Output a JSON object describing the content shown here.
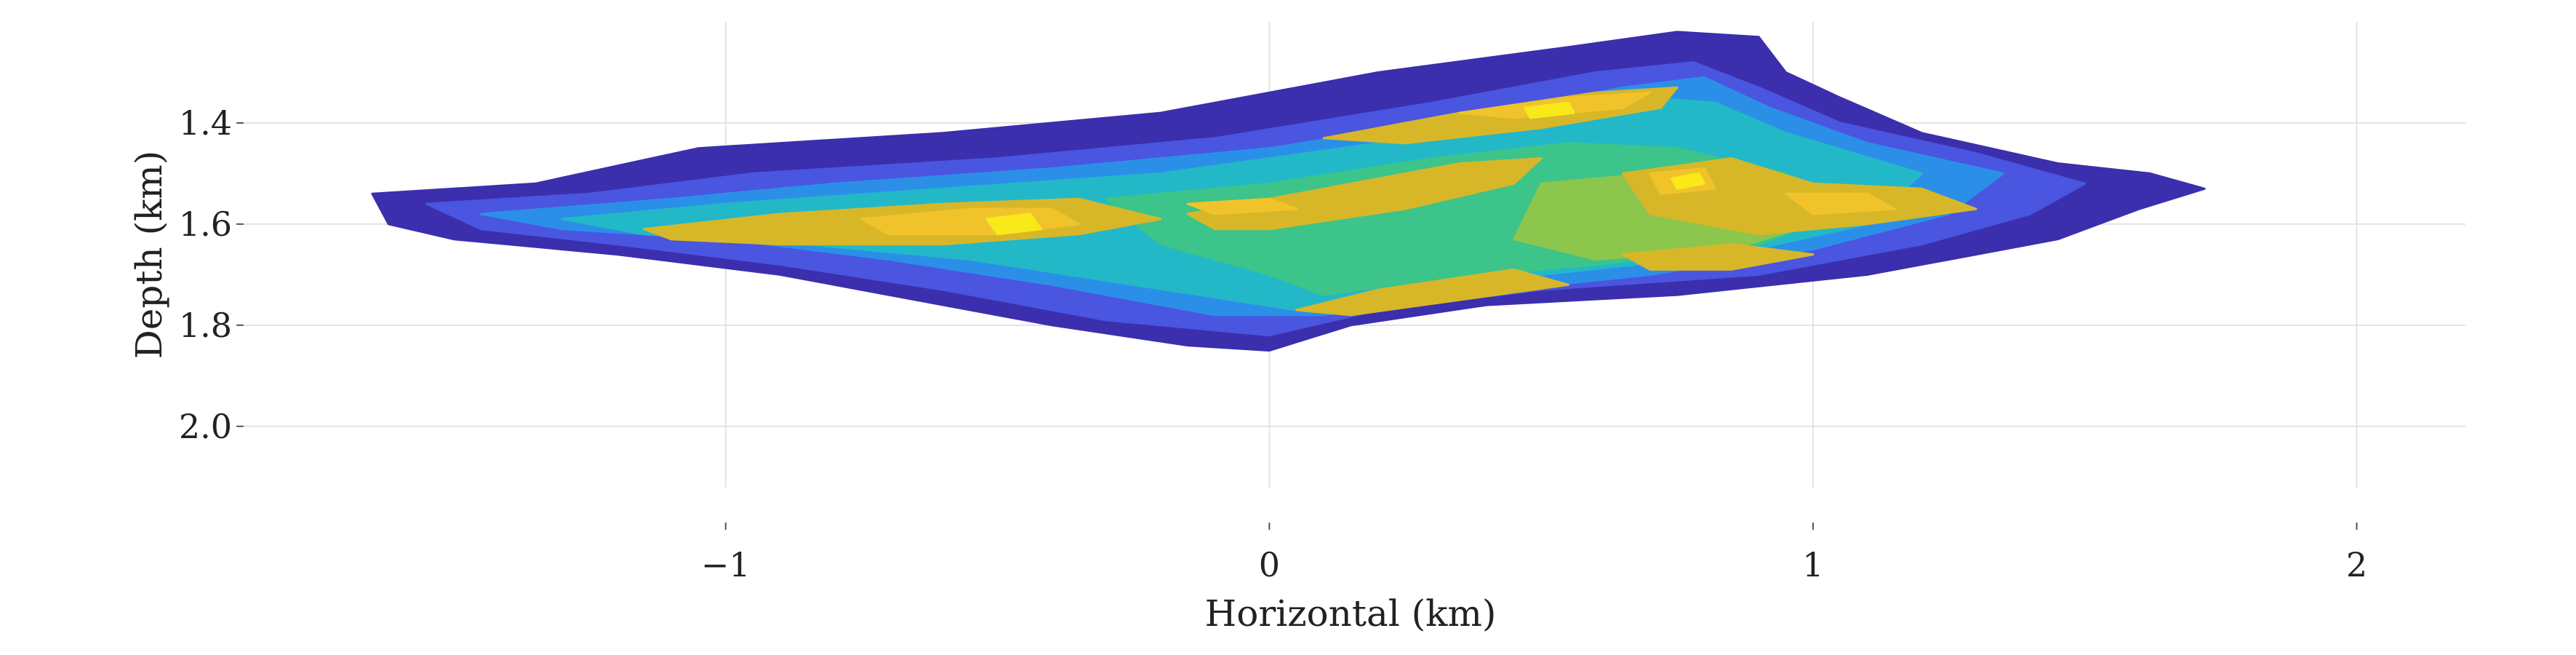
{
  "chart_data": {
    "type": "heatmap",
    "title": "",
    "xlabel": "Horizontal (km)",
    "ylabel": "Depth (km)",
    "xlim": [
      -1.9,
      2.2
    ],
    "ylim": [
      2.15,
      1.2
    ],
    "y_inverted": true,
    "grid": true,
    "x_ticks": [
      -1,
      0,
      1,
      2
    ],
    "x_tick_labels": [
      "−1",
      "0",
      "1",
      "2"
    ],
    "y_ticks": [
      1.4,
      1.6,
      1.8,
      2.0
    ],
    "y_tick_labels": [
      "1.4",
      "1.6",
      "1.8",
      "2.0"
    ],
    "colorscale": [
      "#3b2fad",
      "#4a55e0",
      "#2b8fe8",
      "#23b8c8",
      "#3cc48a",
      "#8cc64d",
      "#d7b728",
      "#f1c32a",
      "#f9e81a"
    ],
    "levels": [
      {
        "level": 1,
        "polygons": [
          [
            [
              -1.65,
              1.54
            ],
            [
              -1.35,
              1.52
            ],
            [
              -1.05,
              1.45
            ],
            [
              -0.6,
              1.42
            ],
            [
              -0.2,
              1.38
            ],
            [
              0.2,
              1.3
            ],
            [
              0.55,
              1.25
            ],
            [
              0.75,
              1.22
            ],
            [
              0.9,
              1.23
            ],
            [
              0.95,
              1.3
            ],
            [
              1.05,
              1.35
            ],
            [
              1.2,
              1.42
            ],
            [
              1.45,
              1.48
            ],
            [
              1.62,
              1.5
            ],
            [
              1.72,
              1.53
            ],
            [
              1.6,
              1.57
            ],
            [
              1.45,
              1.63
            ],
            [
              1.3,
              1.66
            ],
            [
              1.1,
              1.7
            ],
            [
              0.75,
              1.74
            ],
            [
              0.4,
              1.76
            ],
            [
              0.15,
              1.8
            ],
            [
              0.0,
              1.85
            ],
            [
              -0.15,
              1.84
            ],
            [
              -0.4,
              1.8
            ],
            [
              -0.65,
              1.75
            ],
            [
              -0.9,
              1.7
            ],
            [
              -1.2,
              1.66
            ],
            [
              -1.5,
              1.63
            ],
            [
              -1.62,
              1.6
            ]
          ]
        ]
      },
      {
        "level": 2,
        "polygons": [
          [
            [
              -1.55,
              1.56
            ],
            [
              -1.25,
              1.54
            ],
            [
              -0.95,
              1.5
            ],
            [
              -0.5,
              1.47
            ],
            [
              -0.1,
              1.43
            ],
            [
              0.3,
              1.36
            ],
            [
              0.6,
              1.3
            ],
            [
              0.78,
              1.28
            ],
            [
              0.9,
              1.33
            ],
            [
              1.05,
              1.4
            ],
            [
              1.3,
              1.46
            ],
            [
              1.5,
              1.52
            ],
            [
              1.4,
              1.58
            ],
            [
              1.2,
              1.64
            ],
            [
              0.9,
              1.7
            ],
            [
              0.5,
              1.73
            ],
            [
              0.2,
              1.77
            ],
            [
              0.0,
              1.82
            ],
            [
              -0.3,
              1.79
            ],
            [
              -0.6,
              1.73
            ],
            [
              -0.9,
              1.68
            ],
            [
              -1.2,
              1.64
            ],
            [
              -1.45,
              1.61
            ]
          ]
        ]
      },
      {
        "level": 3,
        "polygons": [
          [
            [
              -1.45,
              1.58
            ],
            [
              -1.1,
              1.55
            ],
            [
              -0.8,
              1.52
            ],
            [
              -0.4,
              1.49
            ],
            [
              0.0,
              1.45
            ],
            [
              0.35,
              1.39
            ],
            [
              0.65,
              1.33
            ],
            [
              0.8,
              1.31
            ],
            [
              0.92,
              1.37
            ],
            [
              1.1,
              1.44
            ],
            [
              1.35,
              1.5
            ],
            [
              1.25,
              1.58
            ],
            [
              1.0,
              1.65
            ],
            [
              0.7,
              1.7
            ],
            [
              0.35,
              1.74
            ],
            [
              0.1,
              1.78
            ],
            [
              -0.1,
              1.78
            ],
            [
              -0.4,
              1.72
            ],
            [
              -0.7,
              1.67
            ],
            [
              -1.0,
              1.63
            ],
            [
              -1.3,
              1.61
            ]
          ]
        ]
      },
      {
        "level": 4,
        "polygons": [
          [
            [
              -1.3,
              1.59
            ],
            [
              -1.0,
              1.56
            ],
            [
              -0.6,
              1.53
            ],
            [
              -0.2,
              1.5
            ],
            [
              0.2,
              1.44
            ],
            [
              0.5,
              1.39
            ],
            [
              0.7,
              1.35
            ],
            [
              0.82,
              1.36
            ],
            [
              0.95,
              1.42
            ],
            [
              1.2,
              1.5
            ],
            [
              1.1,
              1.6
            ],
            [
              0.85,
              1.66
            ],
            [
              0.5,
              1.7
            ],
            [
              0.25,
              1.74
            ],
            [
              0.05,
              1.77
            ],
            [
              -0.25,
              1.72
            ],
            [
              -0.55,
              1.67
            ],
            [
              -0.85,
              1.64
            ],
            [
              -1.15,
              1.62
            ]
          ]
        ]
      },
      {
        "level": 5,
        "polygons": [
          [
            [
              -0.3,
              1.55
            ],
            [
              0.0,
              1.52
            ],
            [
              0.3,
              1.47
            ],
            [
              0.55,
              1.44
            ],
            [
              0.75,
              1.45
            ],
            [
              0.95,
              1.5
            ],
            [
              1.05,
              1.58
            ],
            [
              0.9,
              1.64
            ],
            [
              0.6,
              1.68
            ],
            [
              0.3,
              1.71
            ],
            [
              0.1,
              1.74
            ],
            [
              0.0,
              1.7
            ],
            [
              -0.2,
              1.64
            ]
          ]
        ]
      },
      {
        "level": 6,
        "polygons": [
          [
            [
              0.5,
              1.52
            ],
            [
              0.7,
              1.5
            ],
            [
              0.9,
              1.54
            ],
            [
              1.0,
              1.6
            ],
            [
              0.85,
              1.65
            ],
            [
              0.6,
              1.67
            ],
            [
              0.45,
              1.63
            ]
          ]
        ]
      },
      {
        "level": 7,
        "polygons": [
          [
            [
              -1.15,
              1.61
            ],
            [
              -0.9,
              1.58
            ],
            [
              -0.6,
              1.56
            ],
            [
              -0.35,
              1.55
            ],
            [
              -0.2,
              1.59
            ],
            [
              -0.35,
              1.62
            ],
            [
              -0.6,
              1.64
            ],
            [
              -0.9,
              1.64
            ],
            [
              -1.1,
              1.63
            ]
          ],
          [
            [
              -0.15,
              1.58
            ],
            [
              0.1,
              1.53
            ],
            [
              0.35,
              1.48
            ],
            [
              0.5,
              1.47
            ],
            [
              0.45,
              1.52
            ],
            [
              0.25,
              1.57
            ],
            [
              0.0,
              1.61
            ],
            [
              -0.1,
              1.61
            ]
          ],
          [
            [
              0.1,
              1.43
            ],
            [
              0.35,
              1.38
            ],
            [
              0.6,
              1.34
            ],
            [
              0.75,
              1.33
            ],
            [
              0.72,
              1.37
            ],
            [
              0.5,
              1.41
            ],
            [
              0.25,
              1.44
            ]
          ],
          [
            [
              0.65,
              1.5
            ],
            [
              0.85,
              1.47
            ],
            [
              1.0,
              1.52
            ],
            [
              1.2,
              1.53
            ],
            [
              1.3,
              1.57
            ],
            [
              1.1,
              1.6
            ],
            [
              0.9,
              1.62
            ],
            [
              0.7,
              1.58
            ]
          ],
          [
            [
              0.05,
              1.77
            ],
            [
              0.2,
              1.73
            ],
            [
              0.45,
              1.69
            ],
            [
              0.55,
              1.72
            ],
            [
              0.35,
              1.75
            ],
            [
              0.15,
              1.78
            ]
          ],
          [
            [
              0.65,
              1.66
            ],
            [
              0.85,
              1.64
            ],
            [
              1.0,
              1.66
            ],
            [
              0.85,
              1.69
            ],
            [
              0.7,
              1.69
            ]
          ]
        ]
      },
      {
        "level": 8,
        "polygons": [
          [
            [
              -0.75,
              1.59
            ],
            [
              -0.55,
              1.57
            ],
            [
              -0.4,
              1.57
            ],
            [
              -0.35,
              1.6
            ],
            [
              -0.5,
              1.62
            ],
            [
              -0.7,
              1.62
            ]
          ],
          [
            [
              0.35,
              1.38
            ],
            [
              0.55,
              1.35
            ],
            [
              0.7,
              1.34
            ],
            [
              0.65,
              1.37
            ],
            [
              0.45,
              1.39
            ]
          ],
          [
            [
              0.7,
              1.5
            ],
            [
              0.8,
              1.49
            ],
            [
              0.82,
              1.53
            ],
            [
              0.72,
              1.54
            ]
          ],
          [
            [
              0.95,
              1.54
            ],
            [
              1.1,
              1.54
            ],
            [
              1.15,
              1.57
            ],
            [
              1.0,
              1.58
            ]
          ],
          [
            [
              -0.15,
              1.56
            ],
            [
              0.0,
              1.55
            ],
            [
              0.05,
              1.57
            ],
            [
              -0.1,
              1.58
            ]
          ]
        ]
      },
      {
        "level": 9,
        "polygons": [
          [
            [
              -0.52,
              1.59
            ],
            [
              -0.44,
              1.58
            ],
            [
              -0.42,
              1.61
            ],
            [
              -0.5,
              1.62
            ]
          ],
          [
            [
              0.47,
              1.37
            ],
            [
              0.55,
              1.36
            ],
            [
              0.56,
              1.38
            ],
            [
              0.48,
              1.39
            ]
          ],
          [
            [
              0.74,
              1.51
            ],
            [
              0.79,
              1.5
            ],
            [
              0.8,
              1.52
            ],
            [
              0.75,
              1.53
            ]
          ]
        ]
      }
    ]
  }
}
